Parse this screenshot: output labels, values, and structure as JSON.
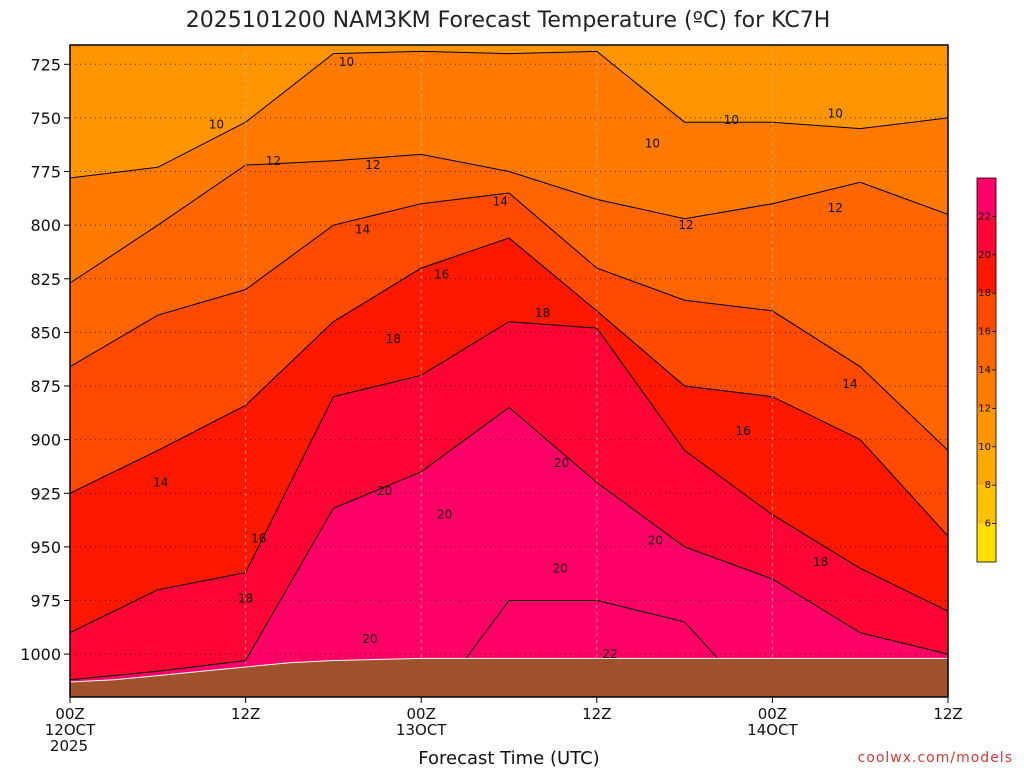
{
  "chart_data": {
    "type": "heatmap",
    "title": "2025101200 NAM3KM Forecast Temperature (ºC) for KC7H",
    "xlabel": "Forecast Time (UTC)",
    "ylabel": "",
    "x_range_hours": [
      0,
      60
    ],
    "y_range_hpa": [
      1020,
      716
    ],
    "y_ticks": [
      725,
      750,
      775,
      800,
      825,
      850,
      875,
      900,
      925,
      950,
      975,
      1000
    ],
    "x_ticks": [
      {
        "hour": 0,
        "lines": [
          "00Z",
          "12OCT",
          "2025"
        ]
      },
      {
        "hour": 12,
        "lines": [
          "12Z"
        ]
      },
      {
        "hour": 24,
        "lines": [
          "00Z",
          "13OCT"
        ]
      },
      {
        "hour": 36,
        "lines": [
          "12Z"
        ]
      },
      {
        "hour": 48,
        "lines": [
          "00Z",
          "14OCT"
        ]
      },
      {
        "hour": 60,
        "lines": [
          "12Z"
        ]
      }
    ],
    "levels": [
      4,
      6,
      8,
      10,
      12,
      14,
      16,
      18,
      20,
      22,
      24
    ],
    "colors": [
      "#ffdd00",
      "#ffc200",
      "#ffa800",
      "#ff9500",
      "#ff7a00",
      "#ff6500",
      "#ff4a00",
      "#ff1800",
      "#ff0535",
      "#ff0066"
    ],
    "colorbar_ticks": [
      6,
      8,
      10,
      12,
      14,
      16,
      18,
      20,
      22
    ],
    "series": [
      {
        "name": "10",
        "hours": [
          0,
          6,
          12,
          18,
          24,
          30,
          36,
          42,
          48,
          54,
          60
        ],
        "pressure": [
          778,
          773,
          752,
          720,
          719,
          720,
          719,
          752,
          752,
          755,
          750
        ]
      },
      {
        "name": "12",
        "hours": [
          0,
          6,
          12,
          18,
          24,
          30,
          36,
          42,
          48,
          54,
          60
        ],
        "pressure": [
          827,
          800,
          772,
          770,
          767,
          775,
          788,
          797,
          790,
          780,
          795
        ]
      },
      {
        "name": "14",
        "hours": [
          0,
          6,
          12,
          18,
          24,
          30,
          36,
          42,
          48,
          54,
          60
        ],
        "pressure": [
          866,
          842,
          830,
          800,
          790,
          785,
          820,
          835,
          840,
          866,
          905
        ]
      },
      {
        "name": "16",
        "hours": [
          0,
          6,
          12,
          18,
          24,
          30,
          36,
          42,
          48,
          54,
          60
        ],
        "pressure": [
          925,
          905,
          884,
          845,
          820,
          806,
          840,
          875,
          880,
          900,
          945
        ]
      },
      {
        "name": "18",
        "hours": [
          0,
          6,
          12,
          18,
          24,
          30,
          36,
          42,
          48,
          54,
          60
        ],
        "pressure": [
          990,
          970,
          962,
          880,
          870,
          845,
          848,
          905,
          935,
          960,
          980
        ]
      },
      {
        "name": "20",
        "hours": [
          0,
          6,
          12,
          18,
          24,
          30,
          36,
          42,
          48,
          54,
          60
        ],
        "pressure": [
          1012,
          1008,
          1003,
          932,
          915,
          885,
          920,
          950,
          965,
          990,
          1000
        ]
      },
      {
        "name": "22",
        "hours": [
          0,
          6,
          12,
          18,
          24,
          30,
          36,
          42,
          48,
          54,
          60
        ],
        "pressure": [
          1030,
          1030,
          1030,
          1030,
          1030,
          975,
          975,
          985,
          1030,
          1030,
          1030
        ]
      }
    ],
    "contour_labels": [
      {
        "text": "10",
        "hour": 18.9,
        "pressure": 724
      },
      {
        "text": "10",
        "hour": 10.0,
        "pressure": 753
      },
      {
        "text": "10",
        "hour": 39.8,
        "pressure": 762
      },
      {
        "text": "10",
        "hour": 45.2,
        "pressure": 751
      },
      {
        "text": "10",
        "hour": 52.3,
        "pressure": 748
      },
      {
        "text": "12",
        "hour": 13.9,
        "pressure": 770
      },
      {
        "text": "12",
        "hour": 20.7,
        "pressure": 772
      },
      {
        "text": "12",
        "hour": 42.1,
        "pressure": 800
      },
      {
        "text": "12",
        "hour": 52.3,
        "pressure": 792
      },
      {
        "text": "14",
        "hour": 20.0,
        "pressure": 802
      },
      {
        "text": "14",
        "hour": 29.4,
        "pressure": 789
      },
      {
        "text": "14",
        "hour": 53.3,
        "pressure": 874
      },
      {
        "text": "16",
        "hour": 25.4,
        "pressure": 823
      },
      {
        "text": "16",
        "hour": 12.9,
        "pressure": 946
      },
      {
        "text": "16",
        "hour": 46.0,
        "pressure": 896
      },
      {
        "text": "18",
        "hour": 22.1,
        "pressure": 853
      },
      {
        "text": "18",
        "hour": 32.3,
        "pressure": 841
      },
      {
        "text": "18",
        "hour": 12.0,
        "pressure": 974
      },
      {
        "text": "18",
        "hour": 51.3,
        "pressure": 957
      },
      {
        "text": "14",
        "hour": 6.2,
        "pressure": 920
      },
      {
        "text": "20",
        "hour": 21.5,
        "pressure": 924
      },
      {
        "text": "20",
        "hour": 25.6,
        "pressure": 935
      },
      {
        "text": "20",
        "hour": 33.6,
        "pressure": 911
      },
      {
        "text": "20",
        "hour": 33.5,
        "pressure": 960
      },
      {
        "text": "20",
        "hour": 40.0,
        "pressure": 947
      },
      {
        "text": "20",
        "hour": 20.5,
        "pressure": 993
      },
      {
        "text": "22",
        "hour": 36.9,
        "pressure": 1000
      }
    ],
    "terrain": {
      "color": "#a0522d",
      "hours": [
        0,
        3,
        6,
        9,
        12,
        15,
        18,
        24,
        30,
        36,
        42,
        48,
        54,
        60
      ],
      "surface_pressure": [
        1013,
        1012,
        1010,
        1008,
        1006,
        1004,
        1003,
        1002,
        1002,
        1002,
        1002,
        1002,
        1002,
        1002
      ]
    }
  },
  "credit": "coolwx.com/models"
}
